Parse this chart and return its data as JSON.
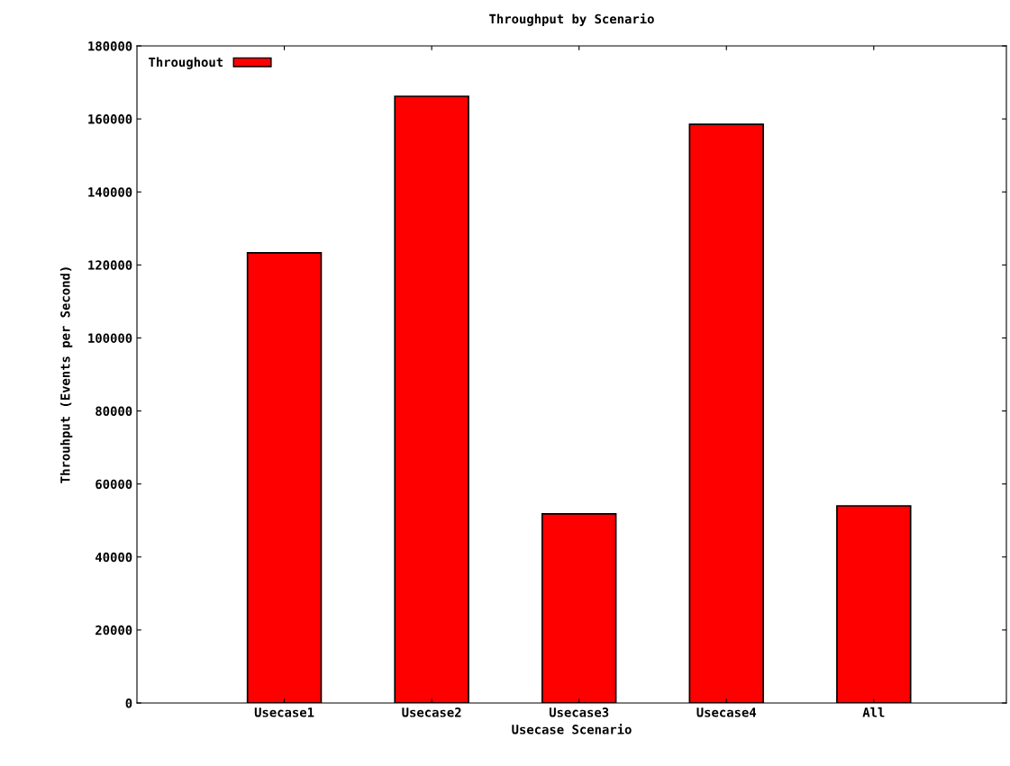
{
  "chart_data": {
    "type": "bar",
    "title": "Throughput by Scenario",
    "xlabel": "Usecase Scenario",
    "ylabel": "Throuhput (Events per Second)",
    "categories": [
      "Usecase1",
      "Usecase2",
      "Usecase3",
      "Usecase4",
      "All"
    ],
    "series": [
      {
        "name": "Throughout",
        "color": "#ff0000",
        "values": [
          123300,
          166200,
          51800,
          158500,
          54000
        ]
      }
    ],
    "ylim": [
      0,
      180000
    ],
    "yticks": [
      0,
      20000,
      40000,
      60000,
      80000,
      100000,
      120000,
      140000,
      160000,
      180000
    ],
    "grid": false,
    "legend": "top left"
  }
}
